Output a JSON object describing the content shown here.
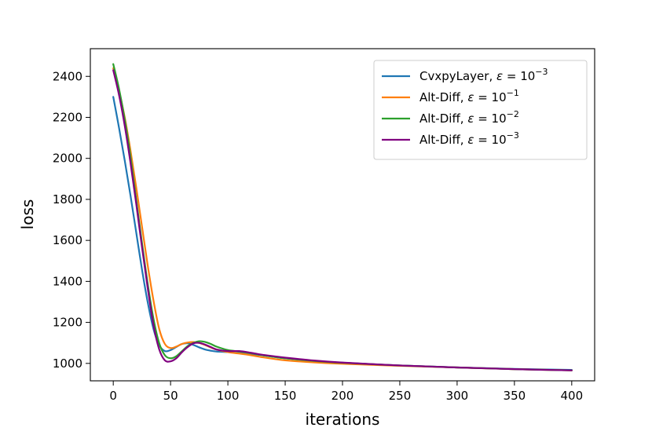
{
  "chart_data": {
    "type": "line",
    "title": "",
    "xlabel": "iterations",
    "ylabel": "loss",
    "xlim": [
      -20,
      420
    ],
    "ylim": [
      915,
      2535
    ],
    "xticks": [
      0,
      50,
      100,
      150,
      200,
      250,
      300,
      350,
      400
    ],
    "yticks": [
      1000,
      1200,
      1400,
      1600,
      1800,
      2000,
      2200,
      2400
    ],
    "grid": false,
    "legend_position": "top-right",
    "series": [
      {
        "name": "CvxpyLayer, ε = 10^−3",
        "legend_prefix": "CvxpyLayer, ",
        "legend_exponent": "−3",
        "color": "#1f77b4",
        "x": [
          0,
          5,
          10,
          15,
          20,
          25,
          30,
          35,
          40,
          45,
          50,
          55,
          60,
          65,
          70,
          75,
          80,
          85,
          90,
          100,
          110,
          120,
          130,
          140,
          150,
          175,
          200,
          250,
          300,
          350,
          400
        ],
        "y": [
          2300,
          2150,
          1990,
          1820,
          1640,
          1460,
          1300,
          1170,
          1090,
          1060,
          1065,
          1080,
          1095,
          1098,
          1090,
          1078,
          1068,
          1062,
          1058,
          1055,
          1050,
          1045,
          1040,
          1032,
          1025,
          1012,
          1003,
          990,
          980,
          973,
          968
        ]
      },
      {
        "name": "Alt-Diff, ε = 10^−1",
        "legend_prefix": "Alt-Diff, ",
        "legend_exponent": "−1",
        "color": "#ff7f0e",
        "x": [
          0,
          5,
          10,
          15,
          20,
          25,
          30,
          35,
          40,
          45,
          50,
          55,
          60,
          65,
          70,
          75,
          80,
          85,
          90,
          100,
          110,
          120,
          130,
          140,
          150,
          175,
          200,
          250,
          300,
          350,
          400
        ],
        "y": [
          2440,
          2330,
          2200,
          2040,
          1860,
          1670,
          1480,
          1310,
          1170,
          1095,
          1075,
          1082,
          1095,
          1102,
          1104,
          1100,
          1090,
          1078,
          1068,
          1055,
          1048,
          1040,
          1030,
          1022,
          1015,
          1005,
          998,
          988,
          980,
          972,
          966
        ]
      },
      {
        "name": "Alt-Diff, ε = 10^−2",
        "legend_prefix": "Alt-Diff, ",
        "legend_exponent": "−2",
        "color": "#2ca02c",
        "x": [
          0,
          5,
          10,
          15,
          20,
          25,
          30,
          35,
          40,
          45,
          50,
          55,
          60,
          65,
          70,
          75,
          80,
          85,
          90,
          100,
          110,
          120,
          130,
          140,
          150,
          175,
          200,
          250,
          300,
          350,
          400
        ],
        "y": [
          2460,
          2340,
          2190,
          2010,
          1800,
          1590,
          1390,
          1220,
          1100,
          1040,
          1025,
          1035,
          1060,
          1085,
          1100,
          1108,
          1105,
          1095,
          1082,
          1065,
          1058,
          1050,
          1040,
          1032,
          1025,
          1012,
          1003,
          990,
          980,
          972,
          966
        ]
      },
      {
        "name": "Alt-Diff, ε = 10^−3",
        "legend_prefix": "Alt-Diff, ",
        "legend_exponent": "−3",
        "color": "#800080",
        "x": [
          0,
          5,
          10,
          15,
          20,
          25,
          30,
          35,
          40,
          45,
          50,
          55,
          60,
          65,
          70,
          75,
          80,
          85,
          90,
          100,
          110,
          120,
          130,
          140,
          150,
          175,
          200,
          250,
          300,
          350,
          400
        ],
        "y": [
          2430,
          2310,
          2160,
          1980,
          1780,
          1570,
          1370,
          1190,
          1070,
          1015,
          1010,
          1025,
          1055,
          1080,
          1098,
          1100,
          1092,
          1080,
          1068,
          1060,
          1060,
          1052,
          1042,
          1035,
          1028,
          1014,
          1004,
          990,
          980,
          972,
          966
        ]
      }
    ]
  }
}
